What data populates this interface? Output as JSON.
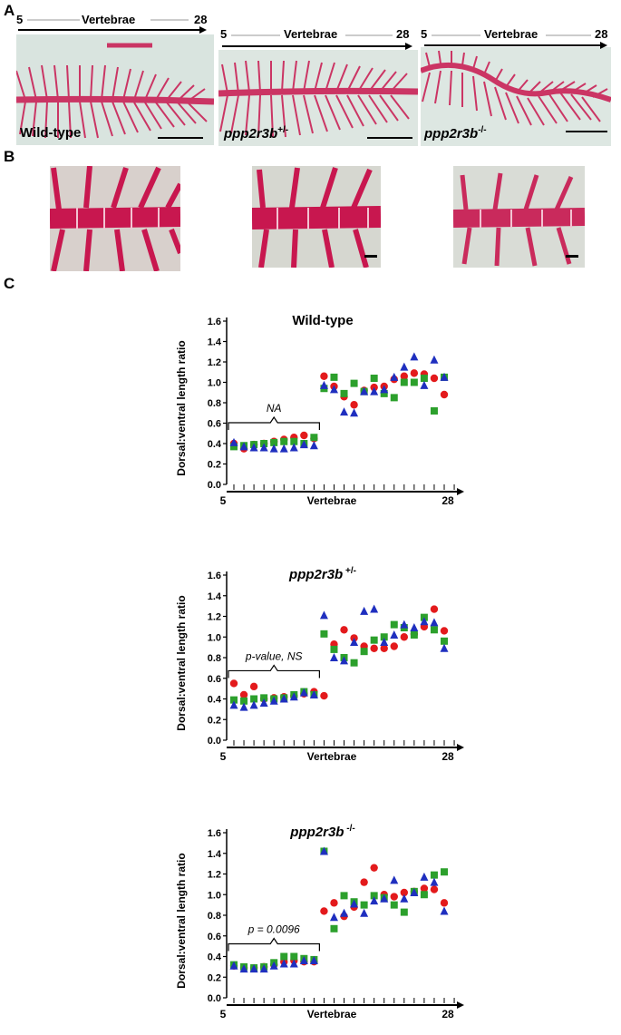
{
  "panel_letters": {
    "a": "A",
    "b": "B",
    "c": "C"
  },
  "panel_a": {
    "photos": [
      {
        "label": "Wild-type",
        "label_sup": "",
        "axis_start": "5",
        "axis_title": "Vertebrae",
        "axis_end": "28"
      },
      {
        "label": "ppp2r3b",
        "label_sup": "+/-",
        "axis_start": "5",
        "axis_title": "Vertebrae",
        "axis_end": "28"
      },
      {
        "label": "ppp2r3b",
        "label_sup": "-/-",
        "axis_start": "5",
        "axis_title": "Vertebrae",
        "axis_end": "28"
      }
    ]
  },
  "colors": {
    "red": "#e31a1c",
    "green": "#2ca02c",
    "blue": "#1f2fbf",
    "stain": "#c8174f"
  },
  "chart_data": [
    {
      "type": "scatter",
      "title": "Wild-type",
      "title_italic": false,
      "title_sup": "",
      "ylabel": "Dorsal:ventral length ratio",
      "xlabel": "Vertebrae",
      "x_start": "5",
      "x_end": "28",
      "ylim": [
        0,
        1.6
      ],
      "yticks": [
        "0.0",
        "0.2",
        "0.4",
        "0.6",
        "0.8",
        "1.0",
        "1.2",
        "1.4",
        "1.6"
      ],
      "bracket_label": "NA",
      "bracket_italic": true,
      "x": [
        6,
        7,
        8,
        9,
        10,
        11,
        12,
        13,
        14,
        15,
        16,
        17,
        18,
        19,
        20,
        21,
        22,
        23,
        24,
        25,
        26,
        27
      ],
      "series": [
        {
          "name": "",
          "marker": "circle",
          "color": "#e31a1c",
          "values": [
            0.4,
            0.35,
            0.39,
            0.4,
            0.42,
            0.44,
            0.46,
            0.48,
            0.45,
            1.06,
            0.96,
            0.86,
            0.78,
            0.92,
            0.95,
            0.96,
            1.03,
            1.06,
            1.09,
            1.08,
            1.04,
            0.88
          ]
        },
        {
          "name": "",
          "marker": "square",
          "color": "#2ca02c",
          "values": [
            0.37,
            0.38,
            0.39,
            0.4,
            0.41,
            0.42,
            0.42,
            0.4,
            0.46,
            0.94,
            1.05,
            0.89,
            0.99,
            0.91,
            1.04,
            0.89,
            0.85,
            1.0,
            1.0,
            1.04,
            0.72,
            1.05
          ]
        },
        {
          "name": "",
          "marker": "triangle",
          "color": "#1f2fbf",
          "values": [
            0.41,
            0.37,
            0.36,
            0.36,
            0.35,
            0.35,
            0.36,
            0.39,
            0.38,
            0.97,
            0.93,
            0.71,
            0.7,
            0.91,
            0.91,
            0.93,
            1.05,
            1.15,
            1.25,
            0.97,
            1.22,
            1.05
          ]
        }
      ]
    },
    {
      "type": "scatter",
      "title": "ppp2r3b",
      "title_italic": true,
      "title_sup": "+/-",
      "ylabel": "Dorsal:ventral length ratio",
      "xlabel": "Vertebrae",
      "x_start": "5",
      "x_end": "28",
      "ylim": [
        0,
        1.6
      ],
      "yticks": [
        "0.0",
        "0.2",
        "0.4",
        "0.6",
        "0.8",
        "1.0",
        "1.2",
        "1.4",
        "1.6"
      ],
      "bracket_label": "p-value, NS",
      "bracket_italic": true,
      "x": [
        6,
        7,
        8,
        9,
        10,
        11,
        12,
        13,
        14,
        15,
        16,
        17,
        18,
        19,
        20,
        21,
        22,
        23,
        24,
        25,
        26,
        27
      ],
      "series": [
        {
          "name": "",
          "marker": "circle",
          "color": "#e31a1c",
          "values": [
            0.55,
            0.44,
            0.52,
            0.4,
            0.41,
            0.42,
            0.43,
            0.45,
            0.47,
            0.43,
            0.93,
            1.07,
            0.99,
            0.91,
            0.89,
            0.89,
            0.91,
            1.0,
            1.03,
            1.1,
            1.27,
            1.06
          ]
        },
        {
          "name": "",
          "marker": "square",
          "color": "#2ca02c",
          "values": [
            0.39,
            0.38,
            0.4,
            0.41,
            0.4,
            0.41,
            0.44,
            0.47,
            0.44,
            1.03,
            0.88,
            0.8,
            0.75,
            0.86,
            0.97,
            1.0,
            1.12,
            1.09,
            1.02,
            1.19,
            1.07,
            0.96
          ]
        },
        {
          "name": "",
          "marker": "triangle",
          "color": "#1f2fbf",
          "values": [
            0.34,
            0.32,
            0.34,
            0.36,
            0.38,
            0.4,
            0.42,
            0.46,
            0.44,
            1.21,
            0.8,
            0.77,
            0.95,
            1.25,
            1.27,
            0.95,
            1.02,
            1.12,
            1.09,
            1.15,
            1.14,
            0.89
          ]
        }
      ]
    },
    {
      "type": "scatter",
      "title": "ppp2r3b",
      "title_italic": true,
      "title_sup": "-/-",
      "ylabel": "Dorsal:ventral length ratio",
      "xlabel": "Vertebrae",
      "x_start": "5",
      "x_end": "28",
      "ylim": [
        0,
        1.6
      ],
      "yticks": [
        "0.0",
        "0.2",
        "0.4",
        "0.6",
        "0.8",
        "1.0",
        "1.2",
        "1.4",
        "1.6"
      ],
      "bracket_label": "p = 0.0096",
      "bracket_italic": true,
      "x": [
        6,
        7,
        8,
        9,
        10,
        11,
        12,
        13,
        14,
        15,
        16,
        17,
        18,
        19,
        20,
        21,
        22,
        23,
        24,
        25,
        26,
        27
      ],
      "series": [
        {
          "name": "",
          "marker": "circle",
          "color": "#e31a1c",
          "values": [
            0.31,
            0.29,
            0.29,
            0.3,
            0.32,
            0.35,
            0.36,
            0.35,
            0.35,
            0.84,
            0.92,
            0.79,
            0.88,
            1.12,
            1.26,
            1.0,
            0.98,
            1.02,
            1.03,
            1.06,
            1.05,
            0.92
          ]
        },
        {
          "name": "",
          "marker": "square",
          "color": "#2ca02c",
          "values": [
            0.32,
            0.3,
            0.29,
            0.3,
            0.34,
            0.4,
            0.4,
            0.38,
            0.37,
            1.42,
            0.67,
            0.99,
            0.93,
            0.9,
            0.99,
            0.97,
            0.9,
            0.83,
            1.03,
            1.0,
            1.19,
            1.22
          ]
        },
        {
          "name": "",
          "marker": "triangle",
          "color": "#1f2fbf",
          "values": [
            0.31,
            0.28,
            0.28,
            0.28,
            0.31,
            0.33,
            0.33,
            0.36,
            0.36,
            1.42,
            0.78,
            0.82,
            0.91,
            0.82,
            0.94,
            0.96,
            1.14,
            0.96,
            1.02,
            1.17,
            1.12,
            0.84
          ]
        }
      ]
    }
  ]
}
